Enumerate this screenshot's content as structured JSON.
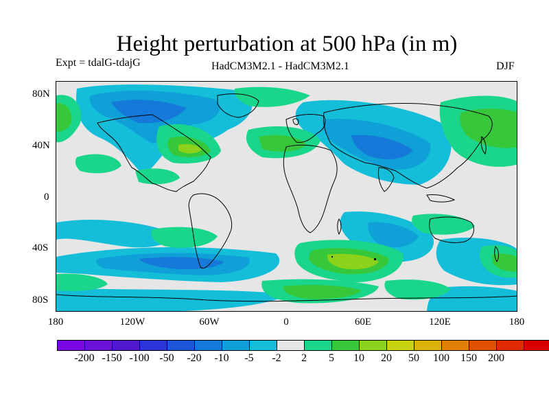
{
  "title": "Height perturbation at 500 hPa (in m)",
  "experiment": "Expt = tdalG-tdajG",
  "models": "HadCM3M2.1 - HadCM3M2.1",
  "season": "DJF",
  "lat_labels": [
    "80N",
    "40N",
    "0",
    "40S",
    "80S"
  ],
  "lon_labels": [
    "180",
    "120W",
    "60W",
    "0",
    "60E",
    "120E",
    "180"
  ],
  "colorbar": {
    "labels": [
      "-200",
      "-150",
      "-100",
      "-50",
      "-20",
      "-10",
      "-5",
      "-2",
      "2",
      "5",
      "10",
      "20",
      "50",
      "100",
      "150",
      "200"
    ],
    "colors": [
      "#7a08e6",
      "#6a12d8",
      "#5218d0",
      "#2a35d8",
      "#1b55d8",
      "#1479d8",
      "#10a0d8",
      "#14bed8",
      "#e6e6e6",
      "#1ad68a",
      "#36c83a",
      "#8cd21a",
      "#c8d20e",
      "#dcb208",
      "#e08006",
      "#e05004",
      "#e02a04",
      "#d80000"
    ]
  },
  "field_colors": {
    "neutral": "#e6e6e6",
    "neg_light": "#14bed8",
    "neg_mid": "#10a0d8",
    "neg_strong": "#1479d8",
    "neg_deep": "#1b55d8",
    "pos_light": "#1ad68a",
    "pos_mid": "#36c83a",
    "pos_strong": "#8cd21a",
    "pos_deep": "#c8d20e"
  }
}
